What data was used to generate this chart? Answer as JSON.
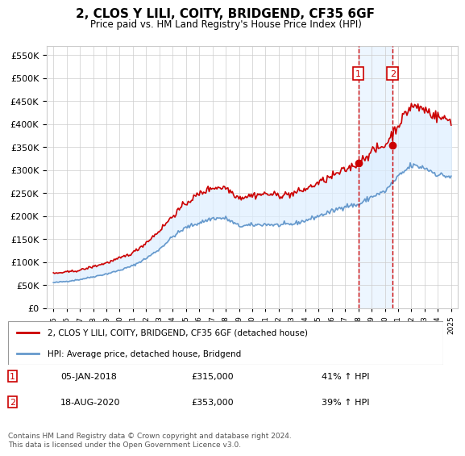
{
  "title": "2, CLOS Y LILI, COITY, BRIDGEND, CF35 6GF",
  "subtitle": "Price paid vs. HM Land Registry's House Price Index (HPI)",
  "ylabel_ticks": [
    "£0",
    "£50K",
    "£100K",
    "£150K",
    "£200K",
    "£250K",
    "£300K",
    "£350K",
    "£400K",
    "£450K",
    "£500K",
    "£550K"
  ],
  "ytick_values": [
    0,
    50000,
    100000,
    150000,
    200000,
    250000,
    300000,
    350000,
    400000,
    450000,
    500000,
    550000
  ],
  "ylim": [
    0,
    570000
  ],
  "xlim_start": 1995.0,
  "xlim_end": 2025.5,
  "sale1_date": "05-JAN-2018",
  "sale1_x": 2018.0,
  "sale1_price": 315000,
  "sale1_label": "£315,000",
  "sale1_pct": "41% ↑ HPI",
  "sale2_date": "18-AUG-2020",
  "sale2_x": 2020.6,
  "sale2_price": 353000,
  "sale2_label": "£353,000",
  "sale2_pct": "39% ↑ HPI",
  "red_color": "#cc0000",
  "blue_color": "#6699cc",
  "shade_color": "#ddeeff",
  "grid_color": "#cccccc",
  "background_color": "#ffffff",
  "legend_label_red": "2, CLOS Y LILI, COITY, BRIDGEND, CF35 6GF (detached house)",
  "legend_label_blue": "HPI: Average price, detached house, Bridgend",
  "footer": "Contains HM Land Registry data © Crown copyright and database right 2024.\nThis data is licensed under the Open Government Licence v3.0.",
  "hpi_years": [
    1995,
    1996,
    1997,
    1998,
    1999,
    2000,
    2001,
    2002,
    2003,
    2004,
    2005,
    2006,
    2007,
    2008,
    2009,
    2010,
    2011,
    2012,
    2013,
    2014,
    2015,
    2016,
    2017,
    2018,
    2019,
    2020,
    2021,
    2022,
    2023,
    2024,
    2025
  ],
  "hpi_values": [
    55000,
    58000,
    62000,
    68000,
    74000,
    82000,
    92000,
    108000,
    128000,
    155000,
    175000,
    185000,
    195000,
    195000,
    178000,
    180000,
    182000,
    180000,
    182000,
    190000,
    200000,
    210000,
    222000,
    224000,
    242000,
    253000,
    285000,
    310000,
    305000,
    290000,
    285000
  ],
  "red_years": [
    1995,
    1996,
    1997,
    1998,
    1999,
    2000,
    2001,
    2002,
    2003,
    2004,
    2005,
    2006,
    2007,
    2008,
    2009,
    2010,
    2011,
    2012,
    2013,
    2014,
    2015,
    2016,
    2017,
    2018,
    2019,
    2020,
    2021,
    2022,
    2023,
    2024,
    2025
  ],
  "red_values": [
    75000,
    78000,
    82000,
    90000,
    98000,
    108000,
    120000,
    142000,
    168000,
    200000,
    228000,
    248000,
    262000,
    262000,
    240000,
    245000,
    248000,
    245000,
    248000,
    258000,
    272000,
    286000,
    300000,
    315000,
    340000,
    353000,
    398000,
    440000,
    432000,
    415000,
    408000
  ]
}
